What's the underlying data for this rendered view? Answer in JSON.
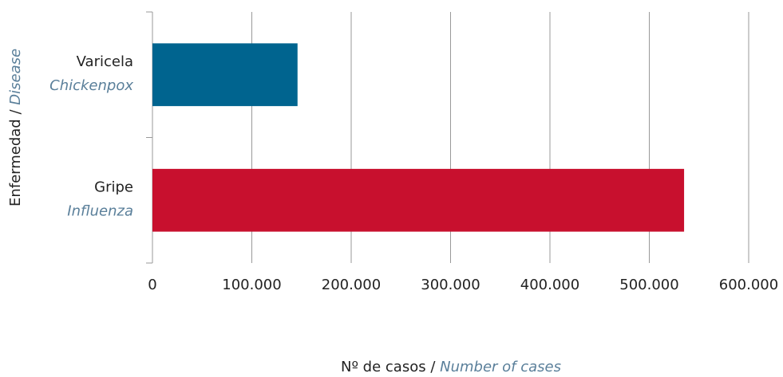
{
  "chart_data": {
    "type": "hbar",
    "categories": [
      "Varicela",
      "Gripe"
    ],
    "category_translations": [
      "Chickenpox",
      "Influenza"
    ],
    "values": [
      146000,
      535000
    ],
    "colors": [
      "#00648f",
      "#c8102e"
    ],
    "xlabel": {
      "text": "Nº de casos /",
      "translation": "Number of cases"
    },
    "ylabel": {
      "text": "Enfermedad /",
      "translation": "Disease"
    },
    "xlim": [
      0,
      600000
    ],
    "xticks": [
      0,
      {
        "value": 100000,
        "label": "100.000"
      },
      {
        "value": 200000,
        "label": "200.000"
      },
      {
        "value": 300000,
        "label": "300.000"
      },
      {
        "value": 400000,
        "label": "400.000"
      },
      {
        "value": 500000,
        "label": "500.000"
      },
      {
        "value": 600000,
        "label": "600.000"
      }
    ],
    "grid": true
  }
}
